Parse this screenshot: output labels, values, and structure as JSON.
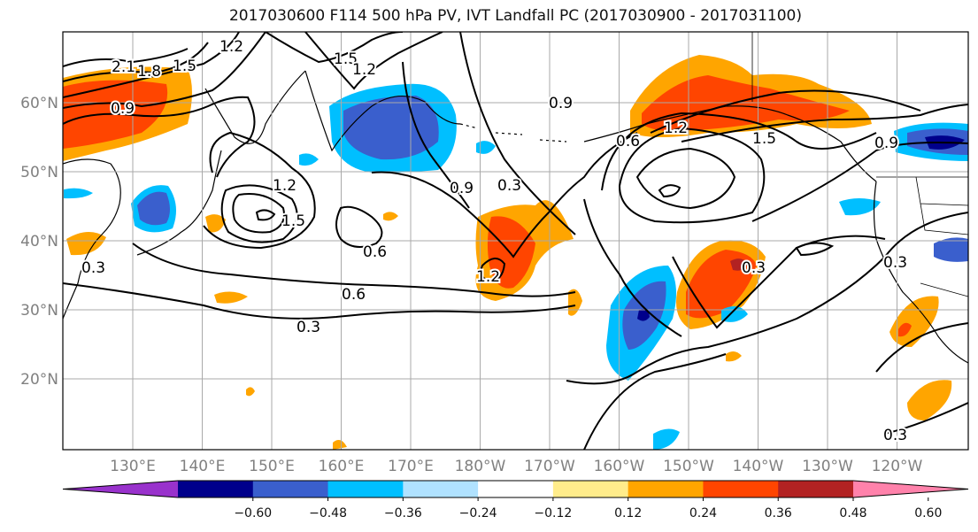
{
  "title": "2017030600 F114 500 hPa PV, IVT Landfall PC (2017030900 - 2017031100)",
  "lat_ticks": [
    {
      "label": "60°N",
      "lat": 60
    },
    {
      "label": "50°N",
      "lat": 50
    },
    {
      "label": "40°N",
      "lat": 40
    },
    {
      "label": "30°N",
      "lat": 30
    },
    {
      "label": "20°N",
      "lat": 20
    }
  ],
  "lon_ticks": [
    {
      "label": "130°E",
      "lon": 130
    },
    {
      "label": "140°E",
      "lon": 140
    },
    {
      "label": "150°E",
      "lon": 150
    },
    {
      "label": "160°E",
      "lon": 160
    },
    {
      "label": "170°E",
      "lon": 170
    },
    {
      "label": "180°W",
      "lon": 180
    },
    {
      "label": "170°W",
      "lon": 190
    },
    {
      "label": "160°W",
      "lon": 200
    },
    {
      "label": "150°W",
      "lon": 210
    },
    {
      "label": "140°W",
      "lon": 220
    },
    {
      "label": "130°W",
      "lon": 230
    },
    {
      "label": "120°W",
      "lon": 240
    }
  ],
  "colorbar": {
    "colors": [
      "#9932cc",
      "#00008b",
      "#3a5fcd",
      "#00bfff",
      "#b0e2ff",
      "#ffffff",
      "#ffec8b",
      "#ffa500",
      "#ff4500",
      "#b22222",
      "#ff82ab"
    ],
    "tick_labels": [
      "−0.60",
      "−0.48",
      "−0.36",
      "−0.24",
      "−0.12",
      "0.12",
      "0.24",
      "0.36",
      "0.48",
      "0.60"
    ]
  },
  "contour_labels": [
    "2.1",
    "1.8",
    "1.5",
    "1.2",
    "0.9",
    "1.5",
    "1.2",
    "1.5",
    "1.2",
    "0.9",
    "0.3",
    "0.6",
    "0.6",
    "0.3",
    "1.2",
    "0.9",
    "0.6",
    "1.2",
    "1.5",
    "0.9",
    "0.3",
    "0.3",
    "0.3",
    "0.3"
  ]
}
